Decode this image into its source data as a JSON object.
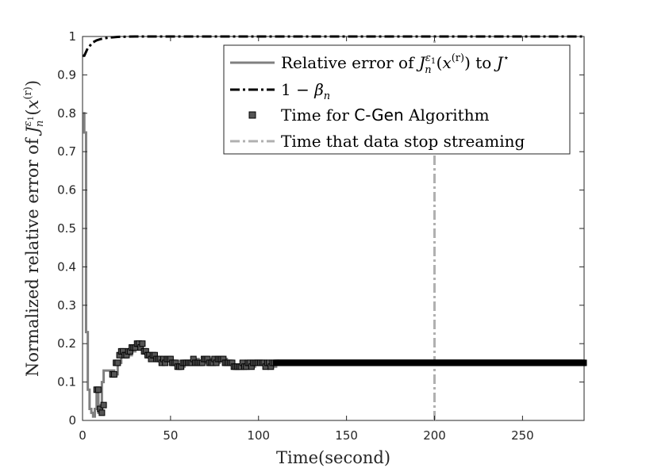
{
  "chart_data": {
    "type": "line",
    "xlabel": "Time(second)",
    "ylabel": "Normalized relative error of J_n^{ε1}(x^{(r)})",
    "xlim": [
      0,
      285
    ],
    "ylim": [
      0,
      1
    ],
    "xticks": [
      0,
      50,
      100,
      150,
      200,
      250
    ],
    "yticks": [
      0,
      0.1,
      0.2,
      0.3,
      0.4,
      0.5,
      0.6,
      0.7,
      0.8,
      0.9,
      1
    ],
    "xtick_labels": [
      "0",
      "50",
      "100",
      "150",
      "200",
      "250"
    ],
    "ytick_labels": [
      "0",
      "0.1",
      "0.2",
      "0.3",
      "0.4",
      "0.5",
      "0.6",
      "0.7",
      "0.8",
      "0.9",
      "1"
    ],
    "grid": false,
    "legend_position": "top-right",
    "legend": [
      {
        "label_parts": [
          "Relative error of ",
          "J",
          "n",
          "ε1",
          "(x",
          "(r)",
          ") to ",
          "J",
          "⋆"
        ],
        "style": "solid",
        "color": "#808080"
      },
      {
        "label_parts": [
          "1 − ",
          "β",
          "n"
        ],
        "style": "dashdot",
        "color": "#000000"
      },
      {
        "label_parts": [
          "Time for ",
          "C-Gen",
          " Algorithm"
        ],
        "style": "marker",
        "color": "#555555"
      },
      {
        "label_parts": [
          "Time that data stop streaming"
        ],
        "style": "dashdot",
        "color": "#b0b0b0"
      }
    ],
    "series": [
      {
        "name": "relative_error",
        "style": "solid",
        "color": "#808080",
        "x": [
          0,
          0.5,
          1,
          1.5,
          2,
          3,
          4,
          5,
          6,
          7,
          8,
          9,
          10,
          11,
          12,
          13,
          14,
          16,
          18,
          20,
          22,
          24,
          26,
          28,
          30,
          32,
          34,
          36,
          38,
          40,
          42,
          44,
          46,
          48,
          50,
          52,
          54,
          56,
          58,
          60,
          62,
          64,
          66,
          68,
          70,
          72,
          74,
          76,
          78,
          80,
          82,
          84,
          86,
          88,
          90,
          92,
          94,
          96,
          98,
          100,
          102,
          104,
          106,
          108,
          110,
          150,
          200,
          250,
          285
        ],
        "y": [
          0.8,
          0.8,
          0.75,
          0.75,
          0.23,
          0.08,
          0.03,
          0.02,
          0.01,
          0.03,
          0.08,
          0.02,
          0.04,
          0.1,
          0.13,
          0.13,
          0.13,
          0.13,
          0.12,
          0.15,
          0.17,
          0.18,
          0.17,
          0.18,
          0.19,
          0.2,
          0.18,
          0.17,
          0.16,
          0.17,
          0.16,
          0.15,
          0.16,
          0.16,
          0.15,
          0.15,
          0.14,
          0.14,
          0.15,
          0.15,
          0.15,
          0.16,
          0.15,
          0.15,
          0.16,
          0.16,
          0.15,
          0.15,
          0.16,
          0.16,
          0.15,
          0.15,
          0.14,
          0.14,
          0.14,
          0.15,
          0.15,
          0.14,
          0.15,
          0.15,
          0.15,
          0.15,
          0.15,
          0.14,
          0.15,
          0.15,
          0.15,
          0.15,
          0.15
        ]
      },
      {
        "name": "one_minus_beta",
        "style": "dashdot",
        "color": "#000000",
        "x": [
          0,
          1,
          2,
          3,
          4,
          5,
          6,
          8,
          10,
          12,
          15,
          20,
          30,
          50,
          100,
          150,
          200,
          250,
          285
        ],
        "y": [
          0.95,
          0.95,
          0.96,
          0.97,
          0.975,
          0.98,
          0.985,
          0.99,
          0.993,
          0.995,
          0.997,
          0.999,
          1.0,
          1.0,
          1.0,
          1.0,
          1.0,
          1.0,
          1.0
        ]
      },
      {
        "name": "cgen_times",
        "style": "marker",
        "color": "#555555",
        "x": [
          8,
          9,
          10,
          11,
          12,
          17,
          18,
          19,
          20,
          21,
          22,
          23,
          24,
          25,
          26,
          27,
          28,
          29,
          30,
          31,
          32,
          33,
          34,
          35,
          36,
          37,
          38,
          39,
          40,
          41,
          42,
          43,
          44,
          45,
          46,
          47,
          48,
          49,
          50,
          51,
          52,
          53,
          54,
          55,
          56,
          57,
          58,
          59,
          60,
          61,
          62,
          63,
          64,
          65,
          66,
          67,
          68,
          69,
          70,
          71,
          72,
          73,
          74,
          75,
          76,
          77,
          78,
          79,
          80,
          81,
          82,
          83,
          84,
          85,
          86,
          87,
          88,
          89,
          90,
          91,
          92,
          93,
          94,
          95,
          96,
          97,
          98,
          99,
          100,
          101,
          102,
          103,
          104,
          105,
          106,
          107,
          108,
          109,
          110
        ],
        "y": [
          0.08,
          0.08,
          0.03,
          0.02,
          0.04,
          0.12,
          0.12,
          0.15,
          0.15,
          0.17,
          0.18,
          0.18,
          0.17,
          0.17,
          0.18,
          0.18,
          0.19,
          0.19,
          0.19,
          0.2,
          0.2,
          0.19,
          0.2,
          0.18,
          0.18,
          0.17,
          0.17,
          0.16,
          0.17,
          0.17,
          0.16,
          0.16,
          0.16,
          0.15,
          0.16,
          0.15,
          0.16,
          0.16,
          0.16,
          0.15,
          0.15,
          0.15,
          0.14,
          0.14,
          0.14,
          0.15,
          0.15,
          0.15,
          0.15,
          0.15,
          0.15,
          0.16,
          0.15,
          0.15,
          0.15,
          0.15,
          0.15,
          0.16,
          0.16,
          0.16,
          0.15,
          0.15,
          0.15,
          0.16,
          0.15,
          0.16,
          0.16,
          0.16,
          0.16,
          0.15,
          0.15,
          0.15,
          0.15,
          0.15,
          0.14,
          0.14,
          0.14,
          0.14,
          0.14,
          0.15,
          0.14,
          0.14,
          0.15,
          0.15,
          0.14,
          0.15,
          0.15,
          0.15,
          0.15,
          0.15,
          0.15,
          0.15,
          0.14,
          0.15,
          0.15,
          0.14,
          0.15,
          0.15,
          0.15
        ]
      },
      {
        "name": "steady_state_markers",
        "style": "marker",
        "color": "#000000",
        "x_range": [
          110,
          285
        ],
        "y": 0.15
      },
      {
        "name": "stop_streaming",
        "style": "dashdot",
        "color": "#b0b0b0",
        "x": [
          200,
          200
        ],
        "y": [
          0,
          1
        ]
      }
    ]
  }
}
